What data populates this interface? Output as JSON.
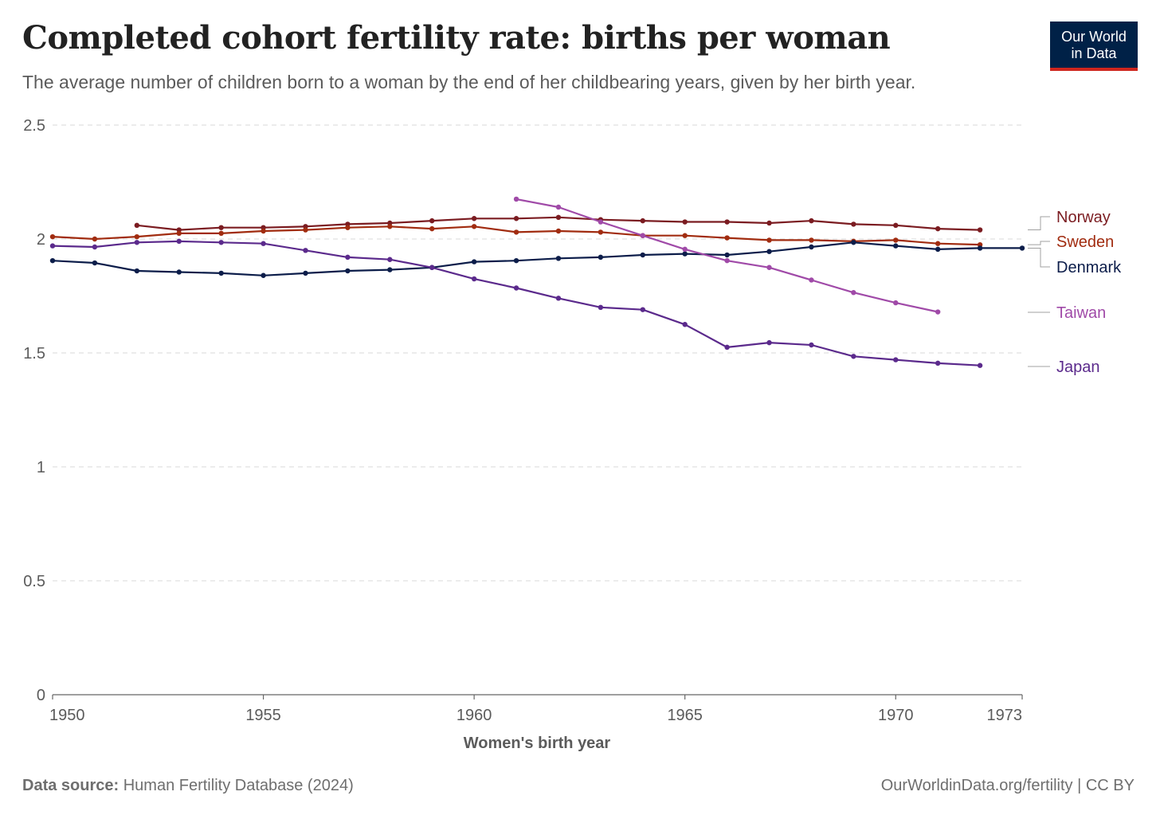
{
  "header": {
    "title": "Completed cohort fertility rate: births per woman",
    "subtitle": "The average number of children born to a woman by the end of her childbearing years, given by her birth year.",
    "logo_line1": "Our World",
    "logo_line2": "in Data"
  },
  "footer": {
    "source_label": "Data source:",
    "source_text": "Human Fertility Database (2024)",
    "right_text": "OurWorldinData.org/fertility | CC BY"
  },
  "colors": {
    "Norway": "#7b1c21",
    "Sweden": "#a12c10",
    "Denmark": "#0c1d4a",
    "Taiwan": "#a04aa8",
    "Japan": "#5b2a8c",
    "grid": "#d8d8d8",
    "axis": "#5b5b5b"
  },
  "chart_data": {
    "type": "line",
    "title": "Completed cohort fertility rate: births per woman",
    "xlabel": "Women's birth year",
    "ylabel": "",
    "xlim": [
      1950,
      1973
    ],
    "ylim": [
      0,
      2.5
    ],
    "x_ticks": [
      "1950",
      "1955",
      "1960",
      "1965",
      "1970",
      "1973"
    ],
    "x_tick_values": [
      1950,
      1955,
      1960,
      1965,
      1970,
      1973
    ],
    "y_ticks": [
      "0",
      "0.5",
      "1",
      "1.5",
      "2",
      "2.5"
    ],
    "y_tick_values": [
      0,
      0.5,
      1,
      1.5,
      2,
      2.5
    ],
    "grid": true,
    "legend": "right, inline labels",
    "series": [
      {
        "name": "Norway",
        "x": [
          1952,
          1953,
          1954,
          1955,
          1956,
          1957,
          1958,
          1959,
          1960,
          1961,
          1962,
          1963,
          1964,
          1965,
          1966,
          1967,
          1968,
          1969,
          1970,
          1971,
          1972
        ],
        "values": [
          2.06,
          2.04,
          2.05,
          2.05,
          2.055,
          2.065,
          2.07,
          2.08,
          2.09,
          2.09,
          2.095,
          2.085,
          2.08,
          2.075,
          2.075,
          2.07,
          2.08,
          2.065,
          2.06,
          2.045,
          2.04
        ]
      },
      {
        "name": "Sweden",
        "x": [
          1950,
          1951,
          1952,
          1953,
          1954,
          1955,
          1956,
          1957,
          1958,
          1959,
          1960,
          1961,
          1962,
          1963,
          1964,
          1965,
          1966,
          1967,
          1968,
          1969,
          1970,
          1971,
          1972
        ],
        "values": [
          2.01,
          2.0,
          2.01,
          2.025,
          2.025,
          2.035,
          2.04,
          2.05,
          2.055,
          2.045,
          2.055,
          2.03,
          2.035,
          2.03,
          2.015,
          2.015,
          2.005,
          1.995,
          1.995,
          1.99,
          1.995,
          1.98,
          1.975
        ]
      },
      {
        "name": "Denmark",
        "x": [
          1950,
          1951,
          1952,
          1953,
          1954,
          1955,
          1956,
          1957,
          1958,
          1959,
          1960,
          1961,
          1962,
          1963,
          1964,
          1965,
          1966,
          1967,
          1968,
          1969,
          1970,
          1971,
          1972,
          1973
        ],
        "values": [
          1.905,
          1.895,
          1.86,
          1.855,
          1.85,
          1.84,
          1.85,
          1.86,
          1.865,
          1.875,
          1.9,
          1.905,
          1.915,
          1.92,
          1.93,
          1.935,
          1.93,
          1.945,
          1.965,
          1.985,
          1.97,
          1.955,
          1.96,
          1.96
        ]
      },
      {
        "name": "Taiwan",
        "x": [
          1961,
          1962,
          1963,
          1964,
          1965,
          1966,
          1967,
          1968,
          1969,
          1970,
          1971
        ],
        "values": [
          2.175,
          2.14,
          2.075,
          2.015,
          1.955,
          1.905,
          1.875,
          1.82,
          1.765,
          1.72,
          1.68
        ]
      },
      {
        "name": "Japan",
        "x": [
          1950,
          1951,
          1952,
          1953,
          1954,
          1955,
          1956,
          1957,
          1958,
          1959,
          1960,
          1961,
          1962,
          1963,
          1964,
          1965,
          1966,
          1967,
          1968,
          1969,
          1970,
          1971,
          1972
        ],
        "values": [
          1.97,
          1.965,
          1.985,
          1.99,
          1.985,
          1.98,
          1.95,
          1.92,
          1.91,
          1.875,
          1.825,
          1.785,
          1.74,
          1.7,
          1.69,
          1.625,
          1.525,
          1.545,
          1.535,
          1.485,
          1.47,
          1.455,
          1.445
        ]
      }
    ]
  }
}
